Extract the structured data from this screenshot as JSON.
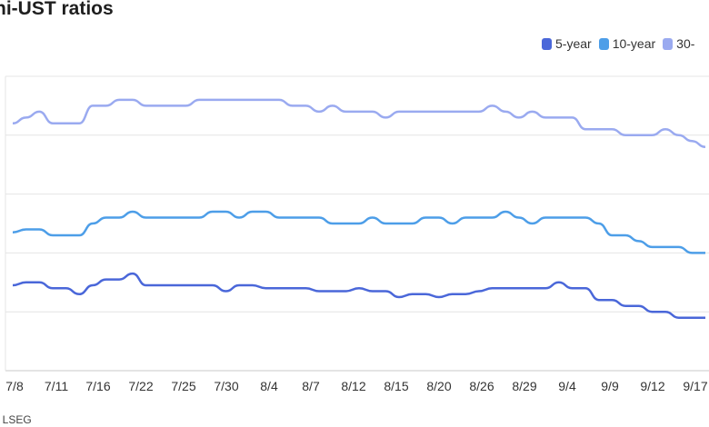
{
  "title": "ni-UST ratios",
  "source": ": LSEG",
  "legend": [
    {
      "label": "5-year",
      "color": "#4a67d9"
    },
    {
      "label": "10-year",
      "color": "#4d9ee8"
    },
    {
      "label": "30-",
      "color": "#9aaaf0"
    }
  ],
  "chart_data": {
    "type": "line",
    "title": "ni-UST ratios",
    "xlabel": "",
    "ylabel": "",
    "grid": true,
    "legend_position": "top-right",
    "x_tick_labels": [
      "7/8",
      "7/11",
      "7/16",
      "7/22",
      "7/25",
      "7/30",
      "8/4",
      "8/7",
      "8/12",
      "8/15",
      "8/20",
      "8/26",
      "8/29",
      "9/4",
      "9/9",
      "9/12",
      "9/17"
    ],
    "ylim": [
      0,
      100
    ],
    "x": [
      "7/8",
      "7/9",
      "7/10",
      "7/11",
      "7/12",
      "7/15",
      "7/16",
      "7/17",
      "7/18",
      "7/19",
      "7/22",
      "7/23",
      "7/24",
      "7/25",
      "7/26",
      "7/29",
      "7/30",
      "7/31",
      "8/1",
      "8/2",
      "8/4",
      "8/5",
      "8/6",
      "8/7",
      "8/8",
      "8/9",
      "8/12",
      "8/13",
      "8/14",
      "8/15",
      "8/16",
      "8/19",
      "8/20",
      "8/21",
      "8/22",
      "8/23",
      "8/26",
      "8/27",
      "8/28",
      "8/29",
      "8/30",
      "9/3",
      "9/4",
      "9/5",
      "9/6",
      "9/9",
      "9/10",
      "9/11",
      "9/12",
      "9/13",
      "9/16",
      "9/17",
      "9/18"
    ],
    "series": [
      {
        "name": "5-year",
        "color": "#4a67d9",
        "values": [
          29,
          30,
          30,
          28,
          28,
          26,
          29,
          31,
          31,
          33,
          29,
          29,
          29,
          29,
          29,
          29,
          27,
          29,
          29,
          28,
          28,
          28,
          28,
          27,
          27,
          27,
          28,
          27,
          27,
          25,
          26,
          26,
          25,
          26,
          26,
          27,
          28,
          28,
          28,
          28,
          28,
          30,
          28,
          28,
          24,
          24,
          22,
          22,
          20,
          20,
          18,
          18,
          18
        ]
      },
      {
        "name": "10-year",
        "color": "#4d9ee8",
        "values": [
          47,
          48,
          48,
          46,
          46,
          46,
          50,
          52,
          52,
          54,
          52,
          52,
          52,
          52,
          52,
          54,
          54,
          52,
          54,
          54,
          52,
          52,
          52,
          52,
          50,
          50,
          50,
          52,
          50,
          50,
          50,
          52,
          52,
          50,
          52,
          52,
          52,
          54,
          52,
          50,
          52,
          52,
          52,
          52,
          50,
          46,
          46,
          44,
          42,
          42,
          42,
          40,
          40
        ]
      },
      {
        "name": "30-",
        "color": "#9aaaf0",
        "values": [
          84,
          86,
          88,
          84,
          84,
          84,
          90,
          90,
          92,
          92,
          90,
          90,
          90,
          90,
          92,
          92,
          92,
          92,
          92,
          92,
          92,
          90,
          90,
          88,
          90,
          88,
          88,
          88,
          86,
          88,
          88,
          88,
          88,
          88,
          88,
          88,
          90,
          88,
          86,
          88,
          86,
          86,
          86,
          82,
          82,
          82,
          80,
          80,
          80,
          82,
          80,
          78,
          76
        ]
      }
    ]
  }
}
